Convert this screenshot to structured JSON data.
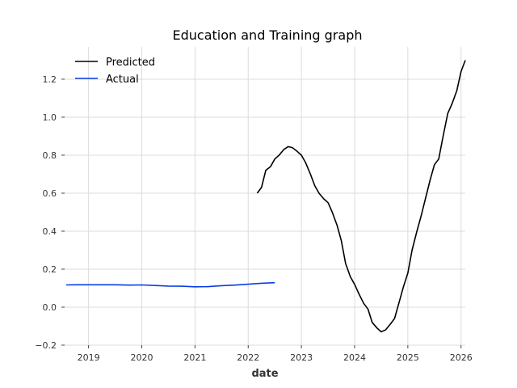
{
  "chart_data": {
    "type": "line",
    "title": "Education and Training graph",
    "xlabel": "date",
    "ylabel": "",
    "xlim": [
      2018.55,
      2026.08
    ],
    "ylim": [
      -0.2,
      1.37
    ],
    "x_ticks": [
      2019,
      2020,
      2021,
      2022,
      2023,
      2024,
      2025,
      2026
    ],
    "x_tick_labels": [
      "2019",
      "2020",
      "2021",
      "2022",
      "2023",
      "2024",
      "2025",
      "2026"
    ],
    "y_ticks": [
      -0.2,
      0.0,
      0.2,
      0.4,
      0.6,
      0.8,
      1.0,
      1.2
    ],
    "y_tick_labels": [
      "−0.2",
      "0.0",
      "0.2",
      "0.4",
      "0.6",
      "0.8",
      "1.0",
      "1.2"
    ],
    "grid": true,
    "legend_position": "top-left",
    "series": [
      {
        "name": "Predicted",
        "color": "#000000",
        "x": [
          2022.17,
          2022.25,
          2022.33,
          2022.42,
          2022.5,
          2022.58,
          2022.67,
          2022.75,
          2022.83,
          2022.92,
          2023.0,
          2023.08,
          2023.17,
          2023.25,
          2023.33,
          2023.42,
          2023.5,
          2023.58,
          2023.67,
          2023.75,
          2023.83,
          2023.92,
          2024.0,
          2024.08,
          2024.17,
          2024.25,
          2024.33,
          2024.42,
          2024.5,
          2024.58,
          2024.67,
          2024.75,
          2024.83,
          2024.92,
          2025.0,
          2025.08,
          2025.17,
          2025.25,
          2025.33,
          2025.42,
          2025.5,
          2025.58,
          2025.67,
          2025.75,
          2025.83,
          2025.92,
          2026.0,
          2026.08
        ],
        "y": [
          0.6,
          0.63,
          0.72,
          0.74,
          0.78,
          0.8,
          0.83,
          0.845,
          0.84,
          0.82,
          0.8,
          0.76,
          0.7,
          0.64,
          0.6,
          0.57,
          0.55,
          0.5,
          0.43,
          0.35,
          0.23,
          0.16,
          0.12,
          0.07,
          0.02,
          -0.01,
          -0.08,
          -0.11,
          -0.13,
          -0.12,
          -0.09,
          -0.06,
          0.02,
          0.11,
          0.18,
          0.3,
          0.4,
          0.48,
          0.57,
          0.67,
          0.75,
          0.78,
          0.91,
          1.02,
          1.07,
          1.14,
          1.24,
          1.3
        ]
      },
      {
        "name": "Actual",
        "color": "#0a3ce6",
        "x": [
          2018.58,
          2018.75,
          2019.0,
          2019.25,
          2019.5,
          2019.75,
          2020.0,
          2020.25,
          2020.5,
          2020.75,
          2021.0,
          2021.25,
          2021.5,
          2021.75,
          2022.0,
          2022.25,
          2022.5
        ],
        "y": [
          0.117,
          0.118,
          0.118,
          0.118,
          0.118,
          0.116,
          0.117,
          0.114,
          0.111,
          0.11,
          0.107,
          0.108,
          0.113,
          0.116,
          0.121,
          0.126,
          0.129
        ]
      }
    ]
  }
}
